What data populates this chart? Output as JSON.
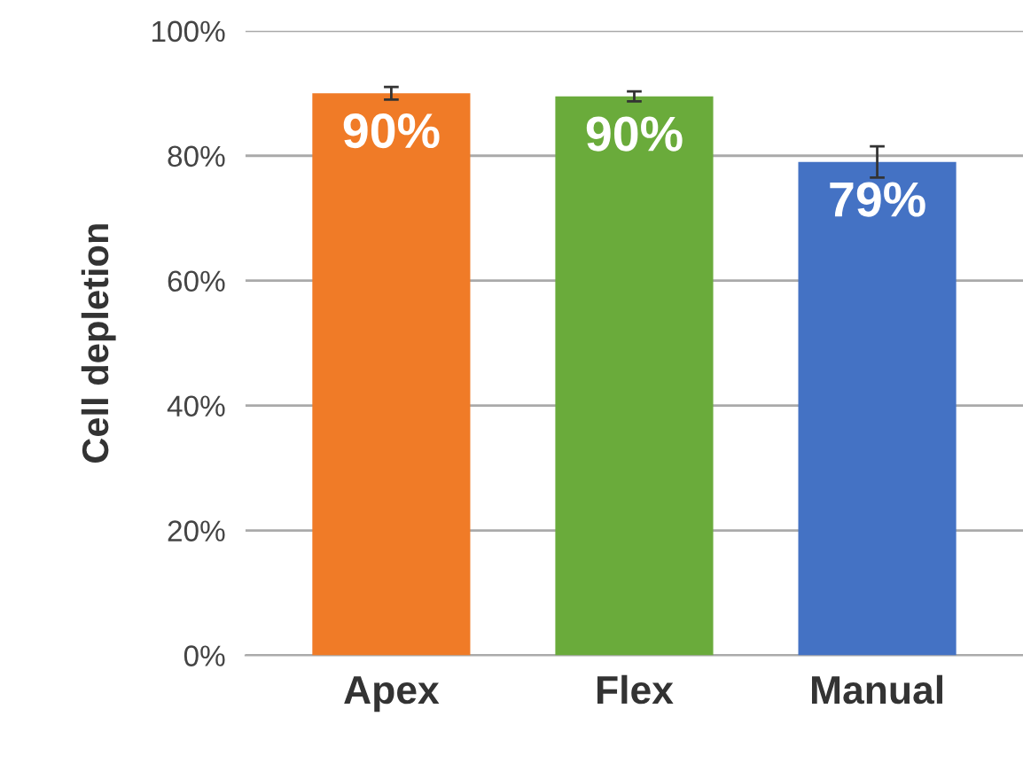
{
  "chart_data": {
    "type": "bar",
    "ylabel": "Cell depletion",
    "categories": [
      "Apex",
      "Flex",
      "Manual"
    ],
    "values": [
      90,
      89.5,
      79
    ],
    "colors": [
      "#f07b27",
      "#6aab3b",
      "#4472c4"
    ],
    "errors": [
      1,
      0.8,
      2.5
    ],
    "value_labels": [
      "90%",
      "90%",
      "79%"
    ],
    "ylim": [
      0,
      100
    ],
    "yticks": [
      {
        "value": 0,
        "label": "0%"
      },
      {
        "value": 20,
        "label": "20%"
      },
      {
        "value": 40,
        "label": "40%"
      },
      {
        "value": 60,
        "label": "60%"
      },
      {
        "value": 80,
        "label": "80%"
      },
      {
        "value": 100,
        "label": "100%"
      }
    ],
    "grid": "y"
  }
}
